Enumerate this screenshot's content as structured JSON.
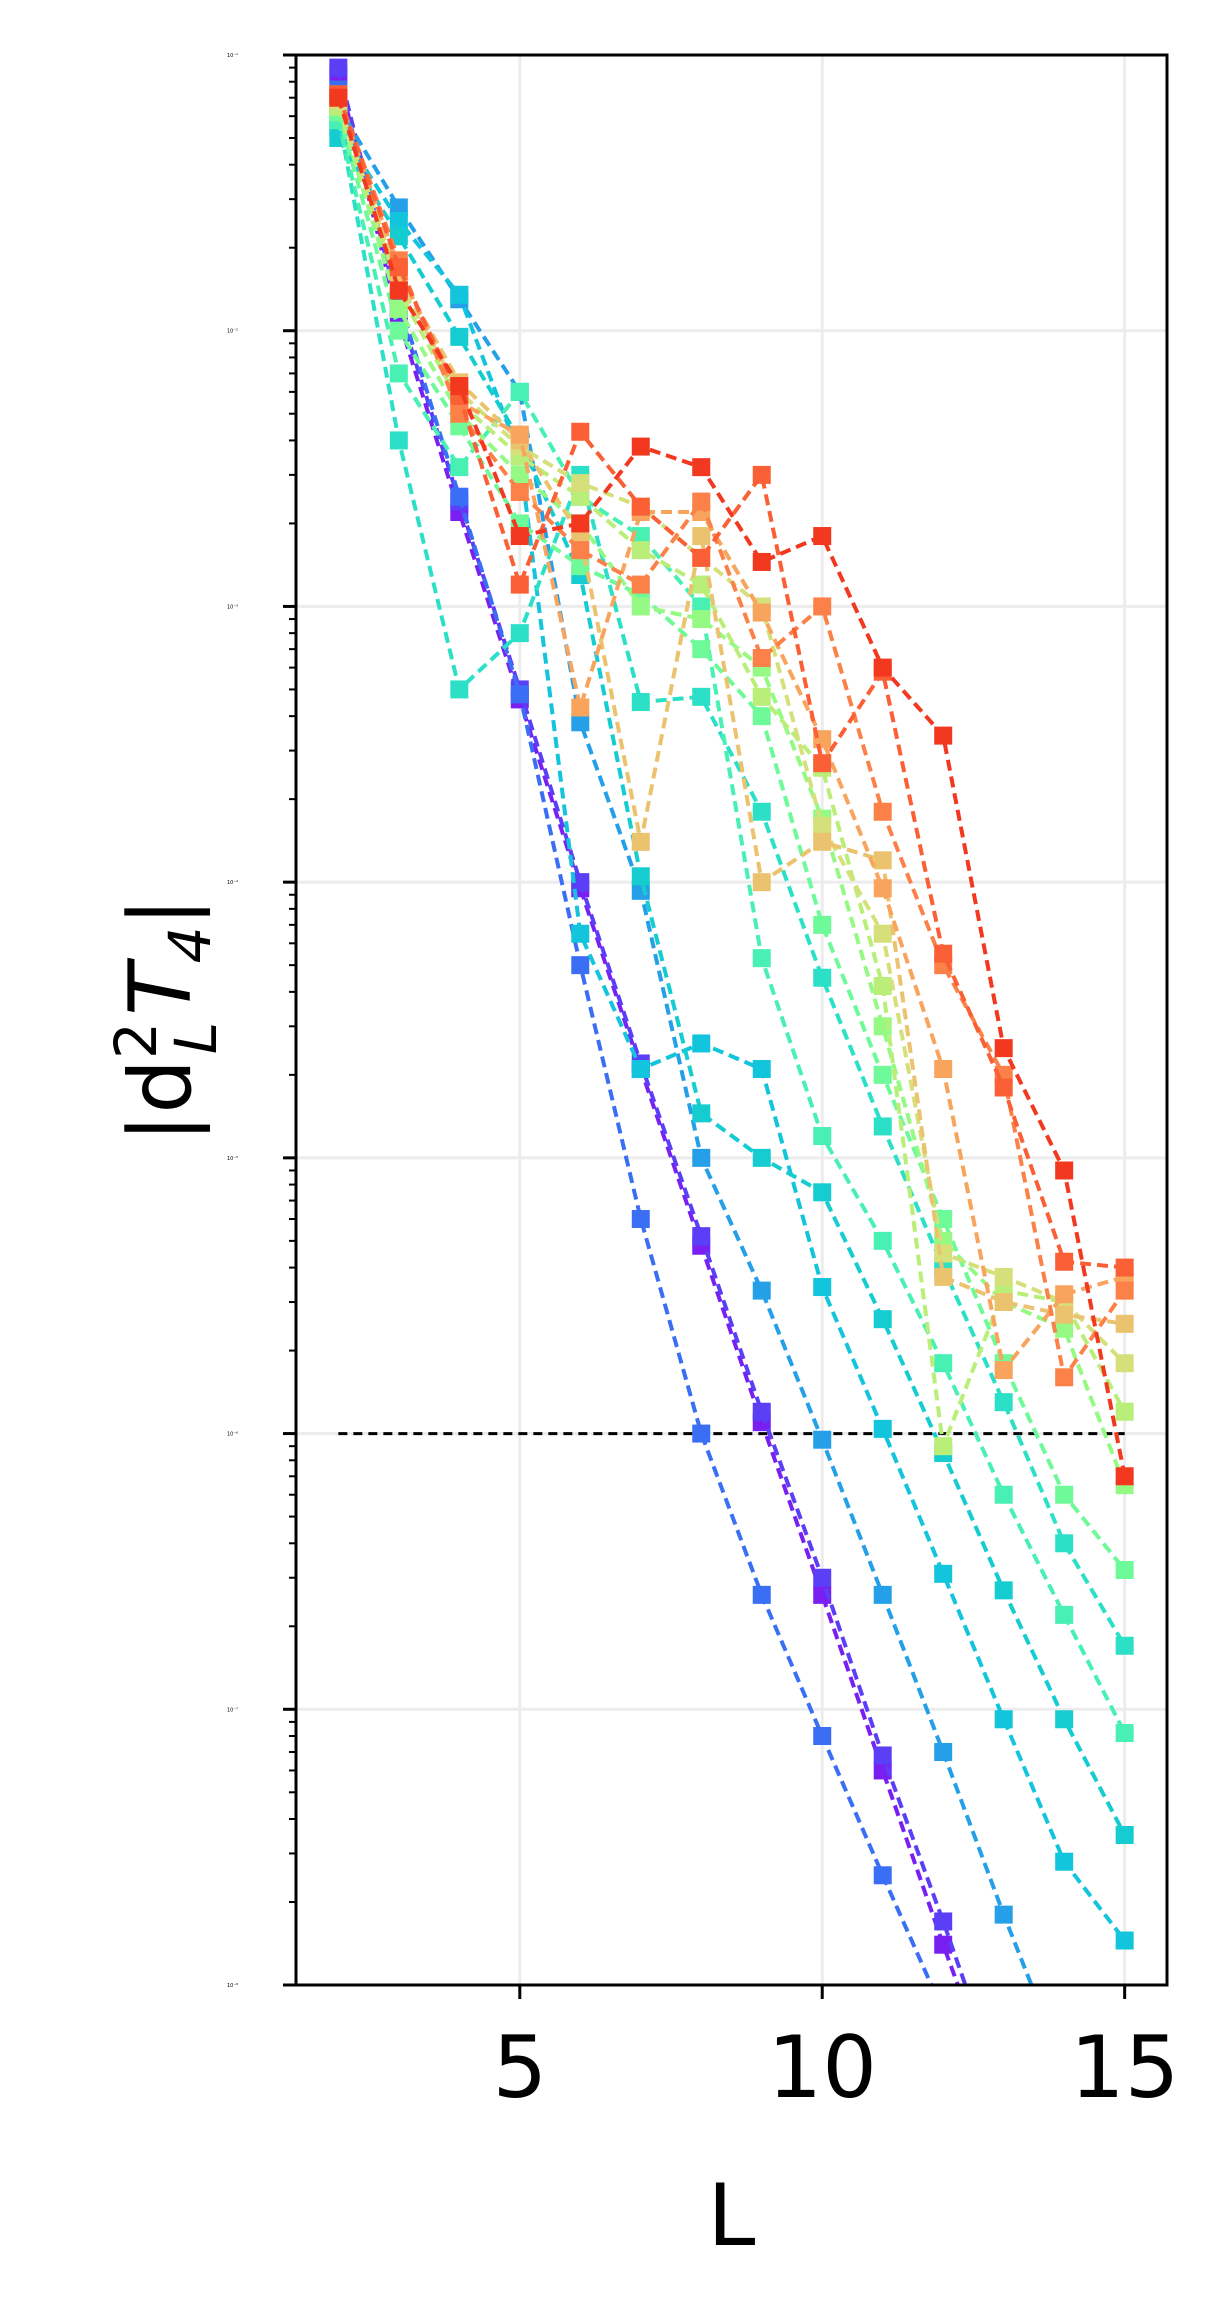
{
  "chart_data": {
    "type": "line",
    "xlabel": "L",
    "ylabel_base": "|d",
    "ylabel_sup": "2",
    "ylabel_sub": "L",
    "ylabel_t": "T",
    "ylabel_tsub": "4",
    "ylabel_end": "|",
    "yscale": "log",
    "xlim": [
      1.3,
      15.7
    ],
    "ylim": [
      1e-08,
      0.1
    ],
    "x_ticks": [
      5,
      10,
      15
    ],
    "x_tick_labels": [
      "5",
      "10",
      "15"
    ],
    "y_ticks": [
      1e-08,
      1e-07,
      1e-06,
      1e-05,
      0.0001,
      0.001,
      0.01,
      0.1
    ],
    "y_tick_labels": [
      "10⁻⁸",
      "10⁻⁷",
      "10⁻⁶",
      "10⁻⁵",
      "10⁻⁴",
      "10⁻³",
      "10⁻²",
      "10⁻¹"
    ],
    "grid": true,
    "reference_line": {
      "y": 1e-06,
      "x_start": 2,
      "x_end": 15,
      "color": "#000000"
    },
    "series": [
      {
        "color": "#7a1ff2",
        "x": [
          2,
          3,
          4,
          5,
          6,
          7,
          8,
          9,
          10,
          11,
          12,
          13
        ],
        "y": [
          0.085,
          0.011,
          0.0022,
          0.00046,
          9.5e-05,
          2.1e-05,
          4.8e-06,
          1.1e-06,
          2.6e-07,
          6e-08,
          1.4e-08,
          3.5e-09
        ]
      },
      {
        "color": "#5b3ff7",
        "x": [
          2,
          3,
          4,
          5,
          6,
          7,
          8,
          9,
          10,
          11,
          12,
          13
        ],
        "y": [
          0.09,
          0.012,
          0.0024,
          0.0005,
          0.0001,
          2.2e-05,
          5.2e-06,
          1.2e-06,
          3e-07,
          6.8e-08,
          1.7e-08,
          4e-09
        ]
      },
      {
        "color": "#3a6ff5",
        "x": [
          2,
          3,
          4,
          5,
          6,
          7,
          8,
          9,
          10,
          11,
          12,
          13
        ],
        "y": [
          0.075,
          0.013,
          0.0025,
          0.00048,
          5e-05,
          6e-06,
          1e-06,
          2.6e-07,
          8e-08,
          2.5e-08,
          8e-09,
          2.5e-09
        ]
      },
      {
        "color": "#249fe8",
        "x": [
          2,
          3,
          4,
          5,
          6,
          7,
          8,
          9,
          10,
          11,
          12,
          13,
          14
        ],
        "y": [
          0.065,
          0.028,
          0.013,
          0.006,
          0.00038,
          9.3e-05,
          1e-05,
          3.3e-06,
          9.5e-07,
          2.6e-07,
          7e-08,
          1.8e-08,
          5e-09
        ]
      },
      {
        "color": "#12c4dc",
        "x": [
          2,
          3,
          4,
          5,
          6,
          7,
          8,
          9,
          10,
          11,
          12,
          13,
          14,
          15
        ],
        "y": [
          0.055,
          0.025,
          0.0135,
          0.0035,
          6.5e-05,
          2.1e-05,
          2.6e-05,
          2.1e-05,
          3.4e-06,
          1.04e-06,
          3.1e-07,
          9.2e-08,
          2.8e-08,
          1.45e-08
        ]
      },
      {
        "color": "#15ccd0",
        "x": [
          2,
          3,
          4,
          5,
          6,
          7,
          8,
          9,
          10,
          11,
          12,
          13,
          14,
          15
        ],
        "y": [
          0.05,
          0.022,
          0.0095,
          0.004,
          0.0013,
          0.000105,
          1.45e-05,
          1e-05,
          7.5e-06,
          2.6e-06,
          8.5e-07,
          2.7e-07,
          9.2e-08,
          3.5e-08
        ]
      },
      {
        "color": "#2be0c6",
        "x": [
          2,
          3,
          4,
          5,
          6,
          7,
          8,
          9,
          10,
          11,
          12,
          13,
          14,
          15
        ],
        "y": [
          0.06,
          0.004,
          0.0005,
          0.0008,
          0.003,
          0.00045,
          0.00047,
          0.00018,
          4.5e-05,
          1.3e-05,
          4e-06,
          1.3e-06,
          4e-07,
          1.7e-07
        ]
      },
      {
        "color": "#48f0b4",
        "x": [
          2,
          3,
          4,
          5,
          6,
          7,
          8,
          9,
          10,
          11,
          12,
          13,
          14,
          15
        ],
        "y": [
          0.058,
          0.007,
          0.0032,
          0.006,
          0.0025,
          0.0018,
          0.001,
          5.3e-05,
          1.2e-05,
          5e-06,
          1.8e-06,
          6e-07,
          2.2e-07,
          8.2e-08
        ]
      },
      {
        "color": "#6efa98",
        "x": [
          2,
          3,
          4,
          5,
          6,
          7,
          8,
          9,
          10,
          11,
          12,
          13,
          14,
          15
        ],
        "y": [
          0.062,
          0.01,
          0.0045,
          0.002,
          0.0014,
          0.0011,
          0.0007,
          0.0004,
          7e-05,
          2e-05,
          6e-06,
          1.8e-06,
          6e-07,
          3.2e-07
        ]
      },
      {
        "color": "#94fa83",
        "x": [
          2,
          3,
          4,
          5,
          6,
          7,
          8,
          9,
          10,
          11,
          12,
          13,
          14,
          15
        ],
        "y": [
          0.065,
          0.012,
          0.005,
          0.003,
          0.002,
          0.001,
          0.0009,
          0.0006,
          0.00017,
          3e-05,
          5e-06,
          3e-06,
          2.4e-06,
          6.5e-07
        ]
      },
      {
        "color": "#b9ee78",
        "x": [
          2,
          3,
          4,
          5,
          6,
          7,
          8,
          9,
          10,
          11,
          12,
          13,
          14,
          15
        ],
        "y": [
          0.065,
          0.014,
          0.0055,
          0.0035,
          0.0025,
          0.0016,
          0.0012,
          0.00047,
          0.00026,
          4.2e-05,
          9e-07,
          3.3e-06,
          3e-06,
          1.2e-06
        ]
      },
      {
        "color": "#d5e07a",
        "x": [
          2,
          3,
          4,
          5,
          6,
          7,
          8,
          9,
          10,
          11,
          12,
          13,
          14,
          15
        ],
        "y": [
          0.068,
          0.015,
          0.006,
          0.0038,
          0.0028,
          0.0023,
          0.0015,
          0.001,
          0.00016,
          6.5e-05,
          4.5e-06,
          3.7e-06,
          3e-06,
          1.8e-06
        ]
      },
      {
        "color": "#ebc36f",
        "x": [
          2,
          3,
          4,
          5,
          6,
          7,
          8,
          9,
          10,
          11,
          12,
          13,
          14,
          15
        ],
        "y": [
          0.07,
          0.016,
          0.0065,
          0.004,
          0.0018,
          0.00014,
          0.0018,
          0.0001,
          0.00014,
          0.00012,
          3.7e-06,
          3e-06,
          2.7e-06,
          2.5e-06
        ]
      },
      {
        "color": "#f8a45c",
        "x": [
          2,
          3,
          4,
          5,
          6,
          7,
          8,
          9,
          10,
          11,
          12,
          13,
          14,
          15
        ],
        "y": [
          0.07,
          0.017,
          0.0055,
          0.0042,
          0.00043,
          0.0022,
          0.0022,
          0.00095,
          0.00033,
          9.5e-05,
          2.1e-05,
          1.7e-06,
          3.2e-06,
          3.7e-06
        ]
      },
      {
        "color": "#fb8148",
        "x": [
          2,
          3,
          4,
          5,
          6,
          7,
          8,
          9,
          10,
          11,
          12,
          13,
          14,
          15
        ],
        "y": [
          0.072,
          0.018,
          0.005,
          0.0026,
          0.0016,
          0.0012,
          0.0024,
          0.00065,
          0.001,
          0.00018,
          5e-05,
          2e-05,
          1.6e-06,
          3.3e-06
        ]
      },
      {
        "color": "#fa5f35",
        "x": [
          2,
          3,
          4,
          5,
          6,
          7,
          8,
          9,
          10,
          11,
          12,
          13,
          14,
          15
        ],
        "y": [
          0.072,
          0.017,
          0.0058,
          0.0012,
          0.0043,
          0.0023,
          0.0015,
          0.003,
          0.00027,
          0.00058,
          5.5e-05,
          1.8e-05,
          4.2e-06,
          4e-06
        ]
      },
      {
        "color": "#f2381f",
        "x": [
          2,
          3,
          4,
          5,
          6,
          7,
          8,
          9,
          10,
          11,
          12,
          13,
          14,
          15
        ],
        "y": [
          0.07,
          0.014,
          0.0063,
          0.0018,
          0.002,
          0.0038,
          0.0032,
          0.00145,
          0.0018,
          0.0006,
          0.00034,
          2.5e-05,
          9e-06,
          7e-07
        ]
      }
    ]
  }
}
